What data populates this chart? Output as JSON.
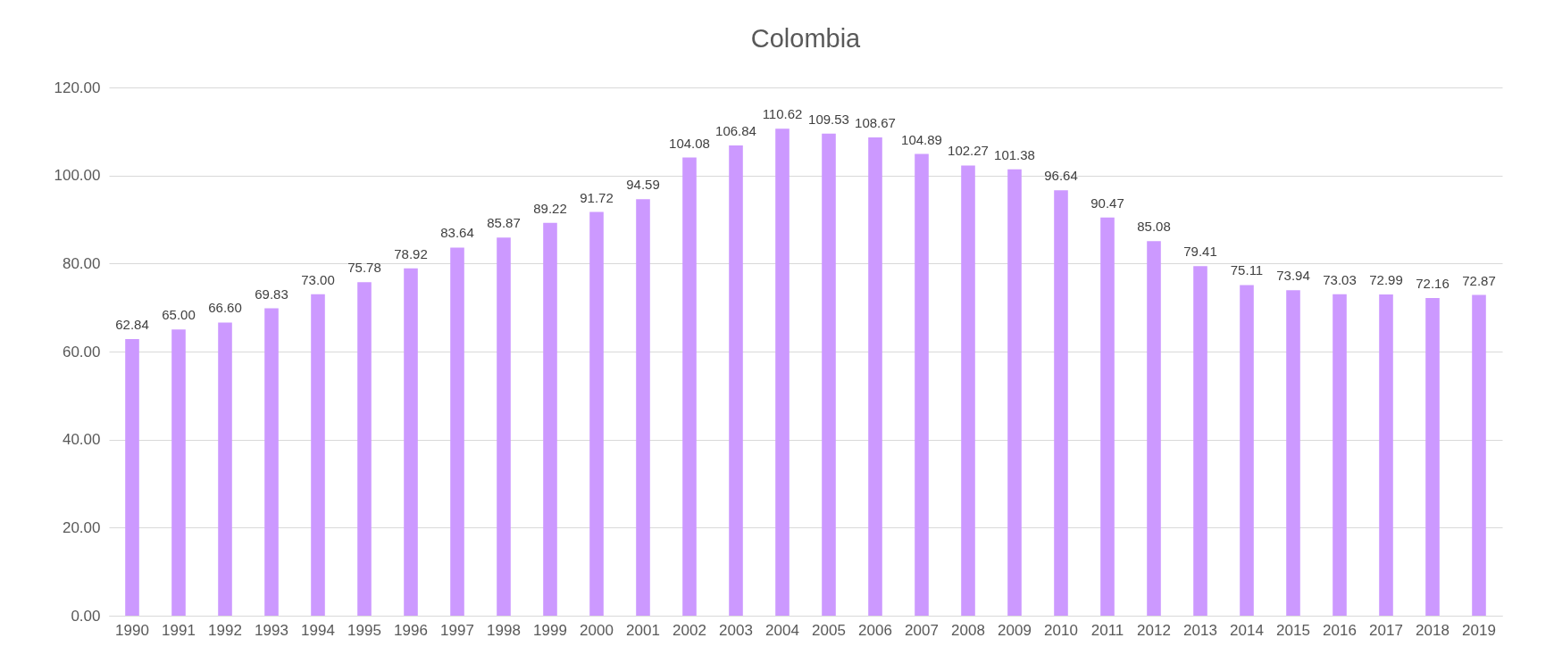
{
  "chart_data": {
    "type": "bar",
    "title": "Colombia",
    "categories": [
      "1990",
      "1991",
      "1992",
      "1993",
      "1994",
      "1995",
      "1996",
      "1997",
      "1998",
      "1999",
      "2000",
      "2001",
      "2002",
      "2003",
      "2004",
      "2005",
      "2006",
      "2007",
      "2008",
      "2009",
      "2010",
      "2011",
      "2012",
      "2013",
      "2014",
      "2015",
      "2016",
      "2017",
      "2018",
      "2019"
    ],
    "values": [
      62.84,
      65.0,
      66.6,
      69.83,
      73.0,
      75.78,
      78.92,
      83.64,
      85.87,
      89.22,
      91.72,
      94.59,
      104.08,
      106.84,
      110.62,
      109.53,
      108.67,
      104.89,
      102.27,
      101.38,
      96.64,
      90.47,
      85.08,
      79.41,
      75.11,
      73.94,
      73.03,
      72.99,
      72.16,
      72.87
    ],
    "value_labels": [
      "62.84",
      "65.00",
      "66.60",
      "69.83",
      "73.00",
      "75.78",
      "78.92",
      "83.64",
      "85.87",
      "89.22",
      "91.72",
      "94.59",
      "104.08",
      "106.84",
      "110.62",
      "109.53",
      "108.67",
      "104.89",
      "102.27",
      "101.38",
      "96.64",
      "90.47",
      "85.08",
      "79.41",
      "75.11",
      "73.94",
      "73.03",
      "72.99",
      "72.16",
      "72.87"
    ],
    "color": "#cc99ff",
    "ylim": [
      0,
      120
    ],
    "yticks": [
      {
        "value": 0,
        "label": "0.00"
      },
      {
        "value": 20,
        "label": "20.00"
      },
      {
        "value": 40,
        "label": "40.00"
      },
      {
        "value": 60,
        "label": "60.00"
      },
      {
        "value": 80,
        "label": "80.00"
      },
      {
        "value": 100,
        "label": "100.00"
      },
      {
        "value": 120,
        "label": "120.00"
      }
    ],
    "grid": "y"
  }
}
